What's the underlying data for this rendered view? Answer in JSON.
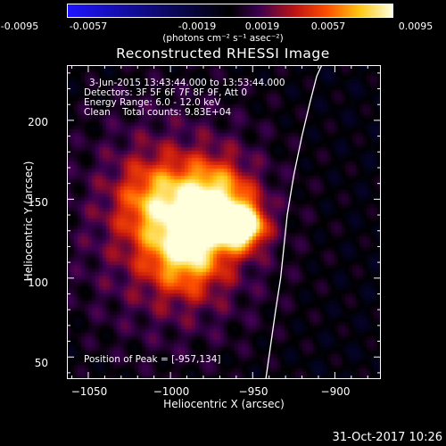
{
  "colorbar": {
    "tick_labels": [
      "-0.0095",
      "-0.0057",
      "-0.0019",
      "0.0019",
      "0.0057",
      "0.0095"
    ],
    "units": "(photons cm⁻² s⁻¹ asec⁻²)"
  },
  "title": "Reconstructed RHESSI Image",
  "info": {
    "time_range": "3-Jun-2015 13:43:44.000 to 13:53:44.000",
    "detectors": "Detectors: 3F 5F 6F 7F 8F 9F, Att 0",
    "energy": "Energy Range: 6.0 - 12.0 keV",
    "clean": "Clean    Total counts: 9.83E+04"
  },
  "peak_label": "Position of Peak = [-957,134]",
  "axes": {
    "xlabel": "Heliocentric X (arcsec)",
    "ylabel": "Heliocentric Y (arcsec)",
    "xlim": [
      -1063,
      -872
    ],
    "ylim": [
      36,
      235
    ],
    "x_ticks": [
      -1050,
      -1000,
      -950,
      -900
    ],
    "x_tick_labels": [
      "−1050",
      "−1000",
      "−950",
      "−900"
    ],
    "y_ticks": [
      50,
      100,
      150,
      200
    ],
    "y_tick_labels": [
      "50",
      "100",
      "150",
      "200"
    ]
  },
  "chart_data": {
    "type": "heatmap",
    "title": "Reconstructed RHESSI Image",
    "xlabel": "Heliocentric X (arcsec)",
    "ylabel": "Heliocentric Y (arcsec)",
    "xlim": [
      -1063,
      -872
    ],
    "ylim": [
      36,
      235
    ],
    "clim": [
      -0.0095,
      0.0095
    ],
    "colormap": "blue-black-red-yellow-white",
    "peak_position": [
      -957,
      134
    ],
    "sources": [
      {
        "x": -957,
        "y": 134,
        "amplitude": 0.0095
      },
      {
        "x": -975,
        "y": 148,
        "amplitude": 0.0075
      },
      {
        "x": -992,
        "y": 118,
        "amplitude": 0.006
      },
      {
        "x": -1010,
        "y": 150,
        "amplitude": 0.0045
      }
    ],
    "limb_curve": {
      "x": [
        -942,
        -936,
        -933,
        -931,
        -929,
        -925,
        -920,
        -915,
        -911,
        -908
      ],
      "y": [
        36,
        80,
        100,
        120,
        140,
        165,
        190,
        212,
        228,
        235
      ]
    }
  },
  "footer": {
    "date": "31-Oct-2017 10:26"
  }
}
